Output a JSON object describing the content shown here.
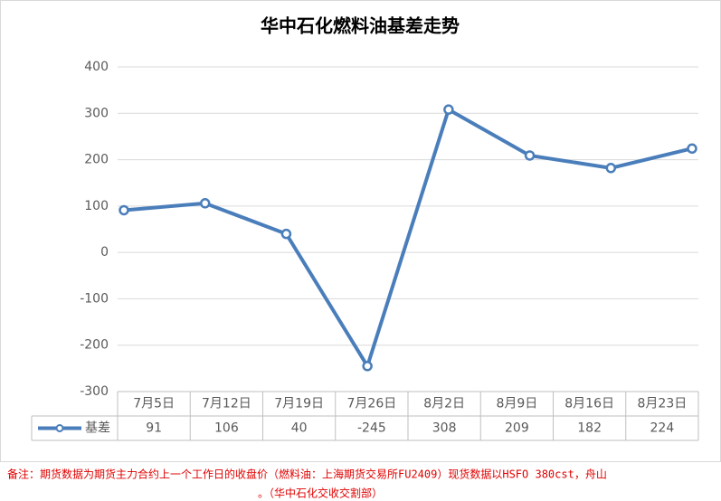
{
  "chart_data": {
    "type": "line",
    "title": "华中石化燃料油基差走势",
    "categories": [
      "7月5日",
      "7月12日",
      "7月19日",
      "7月26日",
      "8月2日",
      "8月9日",
      "8月16日",
      "8月23日"
    ],
    "series": [
      {
        "name": "基差",
        "color": "#4a7ebb",
        "values": [
          91,
          106,
          40,
          -245,
          308,
          209,
          182,
          224
        ]
      }
    ],
    "ylim": [
      -300,
      400
    ],
    "yticks": [
      -300,
      -200,
      -100,
      0,
      100,
      200,
      300,
      400
    ],
    "grid": true,
    "notes": [
      "备注：期货数据为期货主力合约上一个工作日的收盘价（燃料油：上海期货交易所FU2409）现货数据以HSFO 380cst，舟山",
      "。（华中石化交收交割部）"
    ]
  }
}
